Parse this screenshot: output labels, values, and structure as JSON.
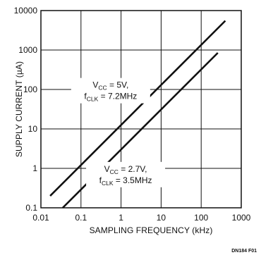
{
  "chart_data": {
    "type": "line",
    "x_scale": "log",
    "y_scale": "log",
    "xlabel": "SAMPLING FREQUENCY (kHz)",
    "ylabel": "SUPPLY CURRENT (µA)",
    "xlim": [
      0.01,
      1000
    ],
    "ylim": [
      0.1,
      10000
    ],
    "x_ticks": [
      "0.01",
      "0.1",
      "1",
      "10",
      "100",
      "1000"
    ],
    "y_ticks": [
      "0.1",
      "1",
      "10",
      "100",
      "1000",
      "10000"
    ],
    "grid": true,
    "series": [
      {
        "name": "VCC = 5V, fCLK = 7.2MHz",
        "points": [
          [
            0.017,
            0.2
          ],
          [
            400,
            5500
          ]
        ],
        "label": {
          "l1_main": "V",
          "l1_sub": "CC",
          "l1_rest": " = 5V,",
          "l2_main": "f",
          "l2_sub": "CLK",
          "l2_rest": " = 7.2MHz",
          "at": [
            0.55,
            110
          ]
        }
      },
      {
        "name": "VCC = 2.7V, fCLK = 3.5MHz",
        "points": [
          [
            0.035,
            0.1
          ],
          [
            260,
            850
          ]
        ],
        "label": {
          "l1_main": "V",
          "l1_sub": "CC",
          "l1_rest": " = 2.7V,",
          "l2_main": "f",
          "l2_sub": "CLK",
          "l2_rest": " = 3.5MHz",
          "at": [
            1.3,
            0.82
          ]
        }
      }
    ]
  },
  "figure_id": "DN184 F01"
}
